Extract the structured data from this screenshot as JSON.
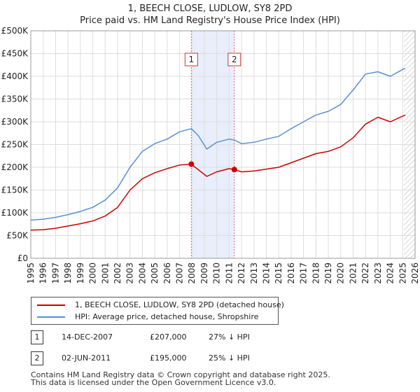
{
  "chart_data": {
    "type": "line",
    "title": "1, BEECH CLOSE, LUDLOW, SY8 2PD",
    "subtitle": "Price paid vs. HM Land Registry's House Price Index (HPI)",
    "xlim": [
      1995,
      2026
    ],
    "ylim": [
      0,
      500000
    ],
    "x_ticks": [
      1995,
      1996,
      1997,
      1998,
      1999,
      2000,
      2001,
      2002,
      2003,
      2004,
      2005,
      2006,
      2007,
      2008,
      2009,
      2010,
      2011,
      2012,
      2013,
      2014,
      2015,
      2016,
      2017,
      2018,
      2019,
      2020,
      2021,
      2022,
      2023,
      2024,
      2025,
      2026
    ],
    "y_ticks": [
      {
        "value": 0,
        "label": "£0"
      },
      {
        "value": 50000,
        "label": "£50K"
      },
      {
        "value": 100000,
        "label": "£100K"
      },
      {
        "value": 150000,
        "label": "£150K"
      },
      {
        "value": 200000,
        "label": "£200K"
      },
      {
        "value": 250000,
        "label": "£250K"
      },
      {
        "value": 300000,
        "label": "£300K"
      },
      {
        "value": 350000,
        "label": "£350K"
      },
      {
        "value": 400000,
        "label": "£400K"
      },
      {
        "value": 450000,
        "label": "£450K"
      },
      {
        "value": 500000,
        "label": "£500K"
      }
    ],
    "shaded_range": [
      2007.95,
      2011.42
    ],
    "forecast_start": 2025.1,
    "series": [
      {
        "name": "1, BEECH CLOSE, LUDLOW, SY8 2PD (detached house)",
        "color": "#cc0000",
        "x": [
          1995,
          1996,
          1997,
          1998,
          1999,
          2000,
          2001,
          2002,
          2003,
          2004,
          2005,
          2006,
          2007,
          2007.95,
          2008.5,
          2009.2,
          2010,
          2011,
          2011.42,
          2012,
          2013,
          2014,
          2015,
          2016,
          2017,
          2018,
          2019,
          2020,
          2021,
          2022,
          2023,
          2024,
          2025.2
        ],
        "y": [
          62000,
          63000,
          66000,
          71000,
          76000,
          82000,
          93000,
          112000,
          150000,
          175000,
          188000,
          197000,
          205000,
          207000,
          195000,
          180000,
          190000,
          197000,
          195000,
          190000,
          192000,
          196000,
          200000,
          210000,
          220000,
          230000,
          235000,
          245000,
          265000,
          295000,
          310000,
          300000,
          315000
        ]
      },
      {
        "name": "HPI: Average price, detached house, Shropshire",
        "color": "#5b8fd4",
        "x": [
          1995,
          1996,
          1997,
          1998,
          1999,
          2000,
          2001,
          2002,
          2003,
          2004,
          2005,
          2006,
          2007,
          2007.95,
          2008.5,
          2009.2,
          2010,
          2011,
          2011.42,
          2012,
          2013,
          2014,
          2015,
          2016,
          2017,
          2018,
          2019,
          2020,
          2021,
          2022,
          2023,
          2024,
          2025.2
        ],
        "y": [
          84000,
          86000,
          90000,
          96000,
          103000,
          112000,
          128000,
          155000,
          200000,
          235000,
          252000,
          262000,
          278000,
          285000,
          270000,
          240000,
          255000,
          262000,
          260000,
          252000,
          255000,
          262000,
          268000,
          285000,
          300000,
          315000,
          323000,
          338000,
          370000,
          405000,
          410000,
          400000,
          418000
        ]
      }
    ],
    "sales": [
      {
        "num": "1",
        "x": 2007.95,
        "y": 207000
      },
      {
        "num": "2",
        "x": 2011.42,
        "y": 195000
      }
    ]
  },
  "legend": {
    "property_label": "1, BEECH CLOSE, LUDLOW, SY8 2PD (detached house)",
    "hpi_label": "HPI: Average price, detached house, Shropshire",
    "property_color": "#cc0000",
    "hpi_color": "#5b8fd4"
  },
  "sales_table": [
    {
      "num": "1",
      "date": "14-DEC-2007",
      "price": "£207,000",
      "hpi": "27% ↓ HPI"
    },
    {
      "num": "2",
      "date": "02-JUN-2011",
      "price": "£195,000",
      "hpi": "25% ↓ HPI"
    }
  ],
  "footer": {
    "line1": "Contains HM Land Registry data © Crown copyright and database right 2025.",
    "line2": "This data is licensed under the Open Government Licence v3.0."
  }
}
